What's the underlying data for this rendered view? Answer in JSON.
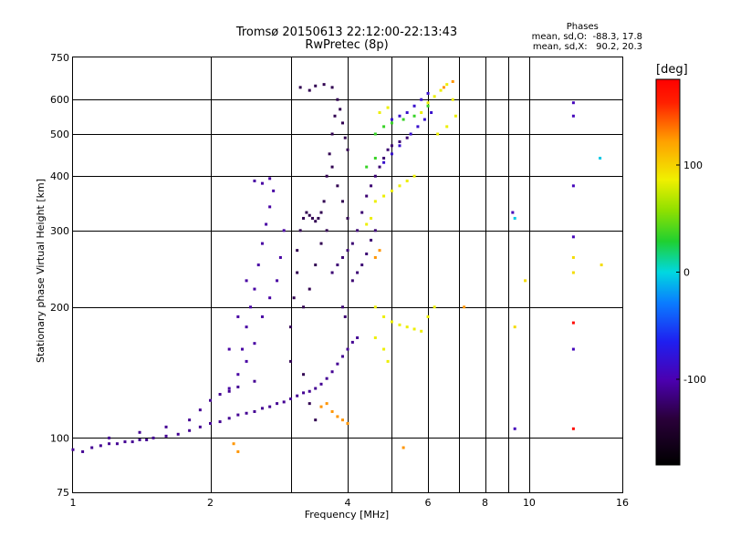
{
  "chart_data": {
    "type": "scatter",
    "title": "Tromsø 20150613 22:12:00-22:13:43",
    "subtitle": "RwPretec (8p)",
    "stats": {
      "heading": "Phases",
      "line_o": "mean, sd,O:  -88.3, 17.8",
      "line_x": "mean, sd,X:   90.2, 20.3"
    },
    "xlabel": "Frequency [MHz]",
    "ylabel": "Stationary phase Virtual Height [km]",
    "x_scale": "log",
    "y_scale": "log",
    "xlim": [
      1,
      16
    ],
    "ylim": [
      75,
      750
    ],
    "x_ticks": [
      1,
      2,
      4,
      6,
      8,
      10,
      16
    ],
    "x_tick_labels": [
      "1",
      "2",
      "4",
      "6",
      "8",
      "10",
      "16"
    ],
    "x_grid": [
      2,
      3,
      4,
      5,
      6,
      7,
      8,
      9,
      10
    ],
    "y_ticks": [
      75,
      100,
      200,
      300,
      400,
      500,
      600,
      750
    ],
    "y_tick_labels": [
      "75",
      "100",
      "200",
      "300",
      "400",
      "500",
      "600",
      "750"
    ],
    "y_grid": [
      100,
      200,
      300,
      400,
      500,
      600
    ],
    "grid": true,
    "colorbar": {
      "label": "[deg]",
      "range": [
        -180,
        180
      ],
      "ticks": [
        100,
        0,
        -100
      ],
      "tick_labels": [
        "100",
        "0",
        "-100"
      ]
    },
    "series": [
      {
        "phase_deg": -110,
        "points": [
          [
            1.0,
            94
          ],
          [
            1.05,
            93
          ],
          [
            1.1,
            95
          ],
          [
            1.15,
            96
          ],
          [
            1.2,
            97
          ],
          [
            1.25,
            97
          ],
          [
            1.3,
            98
          ],
          [
            1.35,
            98
          ],
          [
            1.4,
            99
          ],
          [
            1.45,
            99
          ],
          [
            1.5,
            100
          ],
          [
            1.6,
            101
          ],
          [
            1.7,
            102
          ],
          [
            1.8,
            104
          ],
          [
            1.9,
            106
          ],
          [
            2.0,
            108
          ],
          [
            2.1,
            109
          ],
          [
            2.2,
            111
          ],
          [
            2.3,
            113
          ],
          [
            2.4,
            114
          ],
          [
            2.5,
            115
          ],
          [
            2.6,
            117
          ],
          [
            2.7,
            118
          ],
          [
            2.8,
            120
          ],
          [
            2.9,
            121
          ],
          [
            3.0,
            123
          ],
          [
            3.1,
            125
          ],
          [
            3.2,
            127
          ],
          [
            3.3,
            128
          ],
          [
            3.4,
            130
          ],
          [
            3.5,
            133
          ],
          [
            3.6,
            137
          ],
          [
            3.7,
            142
          ],
          [
            3.8,
            148
          ],
          [
            3.9,
            154
          ],
          [
            4.0,
            160
          ],
          [
            4.1,
            166
          ],
          [
            4.2,
            170
          ],
          [
            1.2,
            100
          ],
          [
            1.4,
            103
          ],
          [
            1.6,
            106
          ],
          [
            1.8,
            110
          ],
          [
            1.9,
            116
          ],
          [
            2.0,
            122
          ],
          [
            2.1,
            126
          ],
          [
            2.2,
            128
          ],
          [
            2.3,
            131
          ],
          [
            2.5,
            135
          ]
        ]
      },
      {
        "phase_deg": -105,
        "points": [
          [
            2.3,
            140
          ],
          [
            2.35,
            160
          ],
          [
            2.4,
            180
          ],
          [
            2.45,
            200
          ],
          [
            2.5,
            220
          ],
          [
            2.55,
            250
          ],
          [
            2.6,
            280
          ],
          [
            2.65,
            310
          ],
          [
            2.7,
            340
          ],
          [
            2.75,
            370
          ],
          [
            2.5,
            390
          ],
          [
            2.6,
            385
          ],
          [
            2.7,
            395
          ],
          [
            2.4,
            150
          ],
          [
            2.5,
            165
          ],
          [
            2.6,
            190
          ],
          [
            2.7,
            210
          ],
          [
            2.8,
            230
          ],
          [
            2.85,
            260
          ],
          [
            2.9,
            300
          ],
          [
            2.2,
            130
          ],
          [
            2.2,
            160
          ],
          [
            2.3,
            190
          ],
          [
            2.4,
            230
          ]
        ]
      },
      {
        "phase_deg": -130,
        "points": [
          [
            3.0,
            150
          ],
          [
            3.0,
            180
          ],
          [
            3.05,
            210
          ],
          [
            3.1,
            240
          ],
          [
            3.1,
            270
          ],
          [
            3.15,
            300
          ],
          [
            3.2,
            320
          ],
          [
            3.25,
            330
          ],
          [
            3.3,
            325
          ],
          [
            3.35,
            320
          ],
          [
            3.4,
            315
          ],
          [
            3.45,
            320
          ],
          [
            3.5,
            330
          ],
          [
            3.2,
            200
          ],
          [
            3.3,
            220
          ],
          [
            3.4,
            250
          ],
          [
            3.5,
            280
          ],
          [
            3.6,
            300
          ],
          [
            3.55,
            350
          ],
          [
            3.6,
            400
          ],
          [
            3.65,
            450
          ],
          [
            3.7,
            500
          ],
          [
            3.75,
            550
          ],
          [
            3.8,
            600
          ],
          [
            3.85,
            570
          ],
          [
            3.9,
            530
          ],
          [
            3.95,
            490
          ],
          [
            4.0,
            460
          ],
          [
            3.7,
            420
          ],
          [
            3.8,
            380
          ],
          [
            3.9,
            350
          ],
          [
            4.0,
            320
          ],
          [
            3.15,
            640
          ],
          [
            3.3,
            630
          ],
          [
            3.4,
            645
          ],
          [
            3.55,
            650
          ],
          [
            3.7,
            640
          ],
          [
            3.2,
            140
          ],
          [
            3.3,
            120
          ],
          [
            3.4,
            110
          ]
        ]
      },
      {
        "phase_deg": -120,
        "points": [
          [
            3.7,
            240
          ],
          [
            3.8,
            250
          ],
          [
            3.9,
            260
          ],
          [
            4.0,
            270
          ],
          [
            4.1,
            280
          ],
          [
            4.2,
            300
          ],
          [
            4.3,
            330
          ],
          [
            4.4,
            360
          ],
          [
            4.5,
            380
          ],
          [
            4.6,
            400
          ],
          [
            4.7,
            420
          ],
          [
            4.8,
            440
          ],
          [
            4.9,
            460
          ],
          [
            5.0,
            470
          ],
          [
            5.2,
            480
          ],
          [
            5.4,
            490
          ],
          [
            4.1,
            230
          ],
          [
            4.2,
            240
          ],
          [
            4.3,
            250
          ],
          [
            4.4,
            265
          ],
          [
            4.5,
            285
          ],
          [
            4.6,
            300
          ],
          [
            3.9,
            200
          ],
          [
            3.95,
            190
          ]
        ]
      },
      {
        "phase_deg": -85,
        "points": [
          [
            5.0,
            540
          ],
          [
            5.2,
            550
          ],
          [
            5.4,
            560
          ],
          [
            5.6,
            580
          ],
          [
            5.8,
            600
          ],
          [
            6.0,
            620
          ],
          [
            5.5,
            500
          ],
          [
            5.7,
            520
          ],
          [
            5.9,
            540
          ],
          [
            6.1,
            560
          ],
          [
            4.8,
            430
          ],
          [
            5.0,
            450
          ],
          [
            5.2,
            470
          ]
        ]
      },
      {
        "phase_deg": 35,
        "points": [
          [
            4.6,
            500
          ],
          [
            4.8,
            520
          ],
          [
            5.0,
            530
          ],
          [
            5.3,
            540
          ],
          [
            5.6,
            550
          ],
          [
            6.0,
            580
          ],
          [
            4.4,
            420
          ],
          [
            4.6,
            440
          ]
        ]
      },
      {
        "phase_deg": 85,
        "points": [
          [
            4.6,
            350
          ],
          [
            4.8,
            360
          ],
          [
            5.0,
            370
          ],
          [
            5.2,
            380
          ],
          [
            5.4,
            390
          ],
          [
            5.6,
            400
          ],
          [
            4.4,
            310
          ],
          [
            4.5,
            320
          ],
          [
            4.7,
            560
          ],
          [
            4.9,
            575
          ],
          [
            5.8,
            560
          ],
          [
            6.0,
            590
          ],
          [
            6.2,
            610
          ],
          [
            6.4,
            630
          ],
          [
            6.6,
            650
          ],
          [
            6.8,
            600
          ],
          [
            6.9,
            550
          ],
          [
            6.6,
            520
          ],
          [
            6.3,
            500
          ],
          [
            4.6,
            200
          ],
          [
            4.8,
            190
          ],
          [
            5.0,
            185
          ],
          [
            5.2,
            182
          ],
          [
            5.4,
            180
          ],
          [
            5.6,
            178
          ],
          [
            5.8,
            176
          ],
          [
            6.0,
            190
          ],
          [
            6.2,
            200
          ],
          [
            4.6,
            170
          ],
          [
            4.8,
            160
          ],
          [
            4.9,
            150
          ]
        ]
      },
      {
        "phase_deg": 125,
        "points": [
          [
            3.7,
            115
          ],
          [
            3.8,
            112
          ],
          [
            3.9,
            110
          ],
          [
            4.0,
            108
          ],
          [
            3.6,
            120
          ],
          [
            3.5,
            118
          ],
          [
            4.6,
            260
          ],
          [
            4.7,
            270
          ],
          [
            2.25,
            97
          ],
          [
            2.3,
            93
          ],
          [
            6.8,
            660
          ],
          [
            6.5,
            640
          ],
          [
            7.2,
            200
          ],
          [
            5.3,
            95
          ]
        ]
      },
      {
        "phase_deg": -95,
        "points": [
          [
            12.5,
            590
          ],
          [
            12.5,
            550
          ],
          [
            12.5,
            380
          ],
          [
            12.5,
            290
          ],
          [
            12.5,
            160
          ],
          [
            9.3,
            105
          ],
          [
            9.2,
            330
          ]
        ]
      },
      {
        "phase_deg": 95,
        "points": [
          [
            12.5,
            260
          ],
          [
            12.5,
            240
          ],
          [
            9.8,
            230
          ],
          [
            9.3,
            180
          ],
          [
            14.4,
            250
          ]
        ]
      },
      {
        "phase_deg": 175,
        "points": [
          [
            12.5,
            184
          ],
          [
            12.5,
            105
          ]
        ]
      },
      {
        "phase_deg": -5,
        "points": [
          [
            9.3,
            320
          ],
          [
            14.3,
            440
          ]
        ]
      }
    ]
  }
}
